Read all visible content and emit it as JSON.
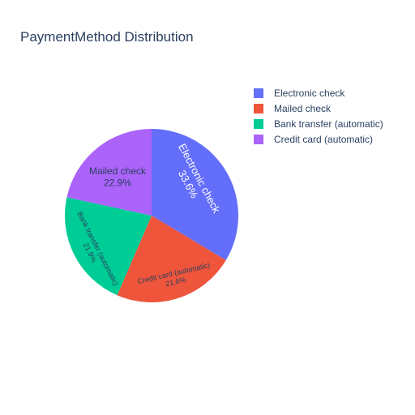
{
  "chart_data": {
    "type": "pie",
    "title": "PaymentMethod Distribution",
    "slices": [
      {
        "label": "Electronic check",
        "percent": 33.6,
        "percent_text": "33.6%",
        "color": "#636efa",
        "text_color": "#ffffff"
      },
      {
        "label": "Mailed check",
        "percent": 22.9,
        "percent_text": "22.9%",
        "color": "#ef553b",
        "text_color": "#2a3f5f"
      },
      {
        "label": "Bank transfer (automatic)",
        "percent": 21.9,
        "percent_text": "21.9%",
        "color": "#00cc96",
        "text_color": "#2a3f5f"
      },
      {
        "label": "Credit card (automatic)",
        "percent": 21.6,
        "percent_text": "21.6%",
        "color": "#ab63fa",
        "text_color": "#2a3f5f"
      }
    ],
    "legend": {
      "position": "top-right",
      "items": [
        {
          "label": "Electronic check",
          "color": "#636efa"
        },
        {
          "label": "Mailed check",
          "color": "#ef553b"
        },
        {
          "label": "Bank transfer (automatic)",
          "color": "#00cc96"
        },
        {
          "label": "Credit card (automatic)",
          "color": "#ab63fa"
        }
      ]
    },
    "direction": "clockwise",
    "start": "top"
  }
}
